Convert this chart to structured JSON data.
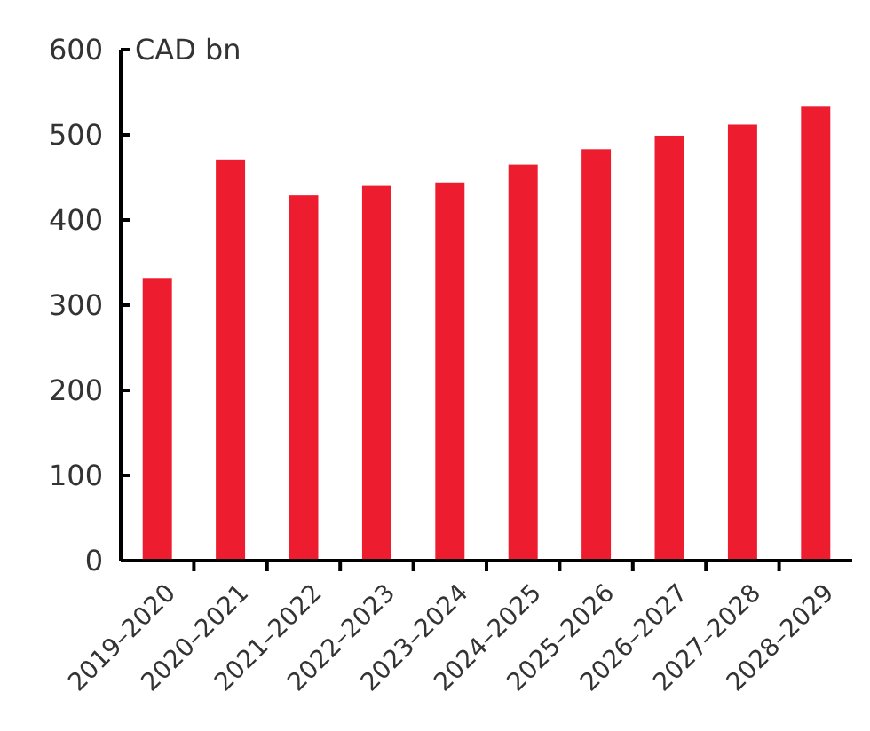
{
  "chart_data": {
    "type": "bar",
    "ylabel": "CAD bn",
    "categories": [
      "2019–2020",
      "2020–2021",
      "2021–2022",
      "2022–2023",
      "2023–2024",
      "2024–2025",
      "2025–2026",
      "2026–2027",
      "2027–2028",
      "2028–2029"
    ],
    "values": [
      332,
      471,
      429,
      440,
      444,
      465,
      483,
      499,
      512,
      533
    ],
    "color": "#ed1c2e",
    "ylim": [
      0,
      600
    ],
    "yticks": [
      0,
      100,
      200,
      300,
      400,
      500,
      600
    ]
  }
}
